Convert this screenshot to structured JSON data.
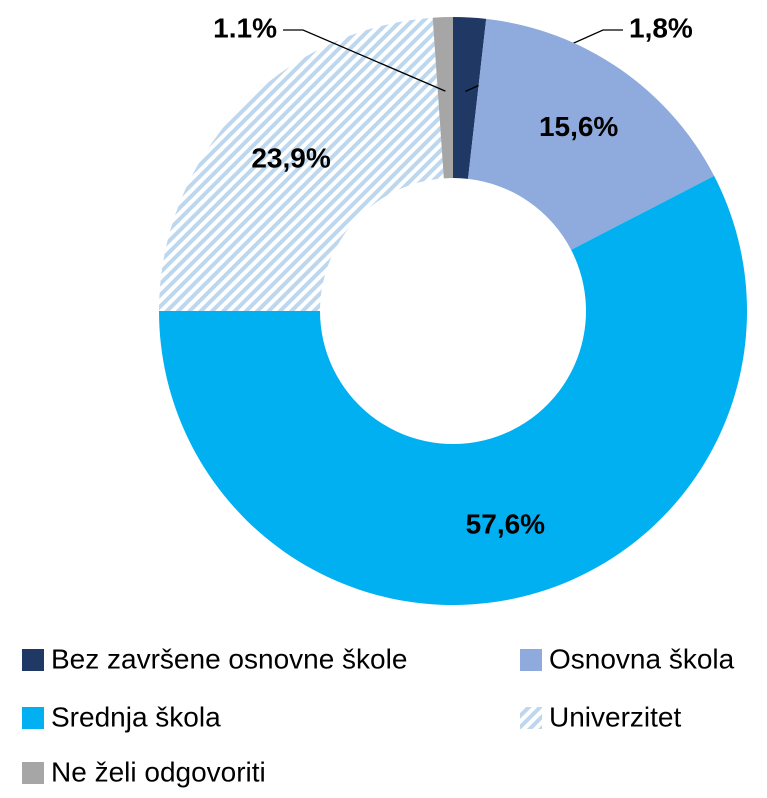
{
  "chart_data": {
    "type": "donut",
    "categories": [
      "Bez završene osnovne škole",
      "Osnovna škola",
      "Srednja škola",
      "Univerzitet",
      "Ne želi odgovoriti"
    ],
    "values": [
      1.8,
      15.6,
      57.6,
      23.9,
      1.1
    ],
    "value_labels": [
      "1,8%",
      "15,6%",
      "57,6%",
      "23,9%",
      "1.1%"
    ],
    "colors": [
      "#1f3864",
      "#8faadc",
      "#00b0f0",
      "#bdd7ee",
      "#a6a6a6"
    ],
    "hatched": [
      false,
      false,
      false,
      true,
      false
    ],
    "legend": "bottom"
  }
}
